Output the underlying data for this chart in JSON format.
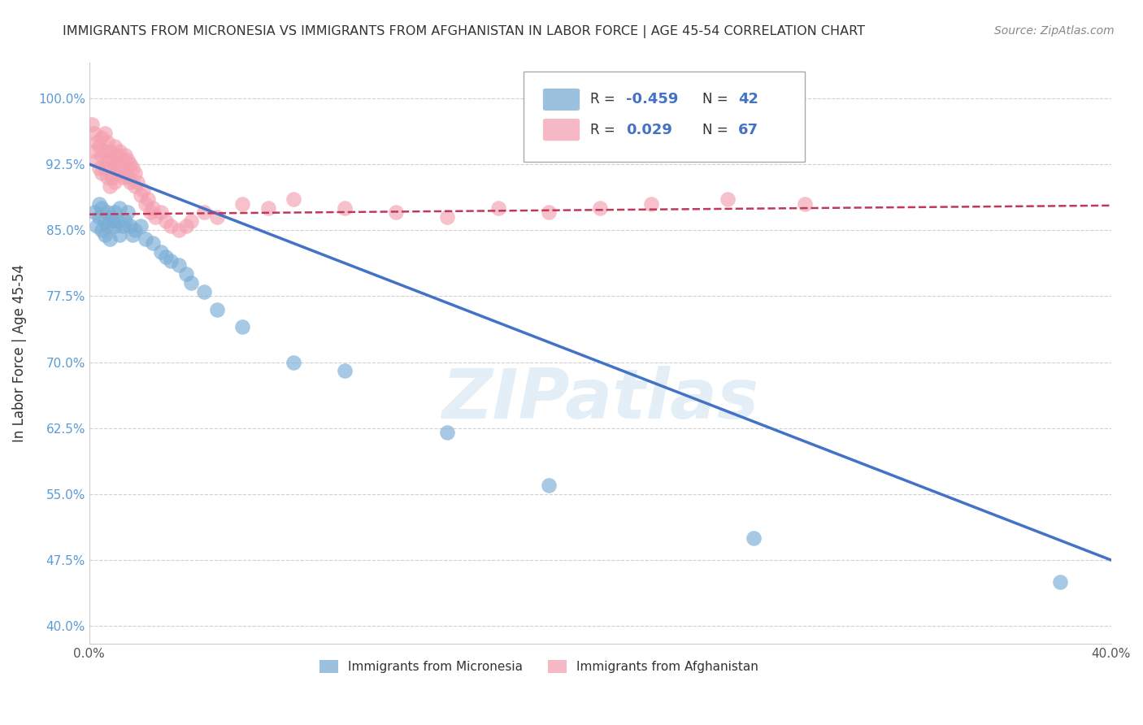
{
  "title": "IMMIGRANTS FROM MICRONESIA VS IMMIGRANTS FROM AFGHANISTAN IN LABOR FORCE | AGE 45-54 CORRELATION CHART",
  "source": "Source: ZipAtlas.com",
  "ylabel": "In Labor Force | Age 45-54",
  "xlim": [
    0.0,
    0.4
  ],
  "ylim": [
    0.38,
    1.04
  ],
  "yticks": [
    0.4,
    0.475,
    0.55,
    0.625,
    0.7,
    0.775,
    0.85,
    0.925,
    1.0
  ],
  "ytick_labels": [
    "40.0%",
    "47.5%",
    "55.0%",
    "62.5%",
    "70.0%",
    "77.5%",
    "85.0%",
    "92.5%",
    "100.0%"
  ],
  "xticks": [
    0.0,
    0.05,
    0.1,
    0.15,
    0.2,
    0.25,
    0.3,
    0.35,
    0.4
  ],
  "xtick_labels": [
    "0.0%",
    "",
    "",
    "",
    "",
    "",
    "",
    "",
    "40.0%"
  ],
  "grid_color": "#d0d0d0",
  "background_color": "#ffffff",
  "micronesia_color": "#7aadd4",
  "afghanistan_color": "#f4a0b0",
  "micronesia_R": -0.459,
  "micronesia_N": 42,
  "afghanistan_R": 0.029,
  "afghanistan_N": 67,
  "watermark": "ZIPatlas",
  "micro_line_x0": 0.0,
  "micro_line_y0": 0.925,
  "micro_line_x1": 0.4,
  "micro_line_y1": 0.475,
  "afghan_line_x0": 0.0,
  "afghan_line_y0": 0.868,
  "afghan_line_x1": 0.4,
  "afghan_line_y1": 0.878,
  "micronesia_scatter_x": [
    0.002,
    0.003,
    0.004,
    0.004,
    0.005,
    0.005,
    0.006,
    0.006,
    0.007,
    0.007,
    0.008,
    0.008,
    0.009,
    0.01,
    0.01,
    0.011,
    0.012,
    0.012,
    0.013,
    0.014,
    0.015,
    0.016,
    0.017,
    0.018,
    0.02,
    0.022,
    0.025,
    0.028,
    0.03,
    0.032,
    0.035,
    0.038,
    0.04,
    0.045,
    0.05,
    0.06,
    0.08,
    0.1,
    0.14,
    0.18,
    0.26,
    0.38
  ],
  "micronesia_scatter_y": [
    0.87,
    0.855,
    0.88,
    0.865,
    0.875,
    0.85,
    0.86,
    0.845,
    0.87,
    0.855,
    0.865,
    0.84,
    0.86,
    0.87,
    0.855,
    0.86,
    0.875,
    0.845,
    0.855,
    0.86,
    0.87,
    0.855,
    0.845,
    0.85,
    0.855,
    0.84,
    0.835,
    0.825,
    0.82,
    0.815,
    0.81,
    0.8,
    0.79,
    0.78,
    0.76,
    0.74,
    0.7,
    0.69,
    0.62,
    0.56,
    0.5,
    0.45
  ],
  "afghanistan_scatter_x": [
    0.001,
    0.002,
    0.002,
    0.003,
    0.003,
    0.004,
    0.004,
    0.005,
    0.005,
    0.005,
    0.006,
    0.006,
    0.006,
    0.007,
    0.007,
    0.007,
    0.008,
    0.008,
    0.008,
    0.009,
    0.009,
    0.01,
    0.01,
    0.01,
    0.011,
    0.011,
    0.012,
    0.012,
    0.013,
    0.013,
    0.014,
    0.014,
    0.015,
    0.015,
    0.016,
    0.016,
    0.017,
    0.018,
    0.018,
    0.019,
    0.02,
    0.021,
    0.022,
    0.023,
    0.024,
    0.025,
    0.026,
    0.028,
    0.03,
    0.032,
    0.035,
    0.038,
    0.04,
    0.045,
    0.05,
    0.06,
    0.07,
    0.08,
    0.1,
    0.12,
    0.14,
    0.16,
    0.18,
    0.2,
    0.22,
    0.25,
    0.28
  ],
  "afghanistan_scatter_y": [
    0.97,
    0.96,
    0.94,
    0.95,
    0.93,
    0.945,
    0.92,
    0.955,
    0.935,
    0.915,
    0.96,
    0.94,
    0.92,
    0.95,
    0.93,
    0.91,
    0.94,
    0.92,
    0.9,
    0.93,
    0.91,
    0.945,
    0.925,
    0.905,
    0.935,
    0.915,
    0.94,
    0.92,
    0.93,
    0.91,
    0.935,
    0.915,
    0.93,
    0.91,
    0.925,
    0.905,
    0.92,
    0.9,
    0.915,
    0.905,
    0.89,
    0.895,
    0.88,
    0.885,
    0.87,
    0.875,
    0.865,
    0.87,
    0.86,
    0.855,
    0.85,
    0.855,
    0.86,
    0.87,
    0.865,
    0.88,
    0.875,
    0.885,
    0.875,
    0.87,
    0.865,
    0.875,
    0.87,
    0.875,
    0.88,
    0.885,
    0.88
  ]
}
